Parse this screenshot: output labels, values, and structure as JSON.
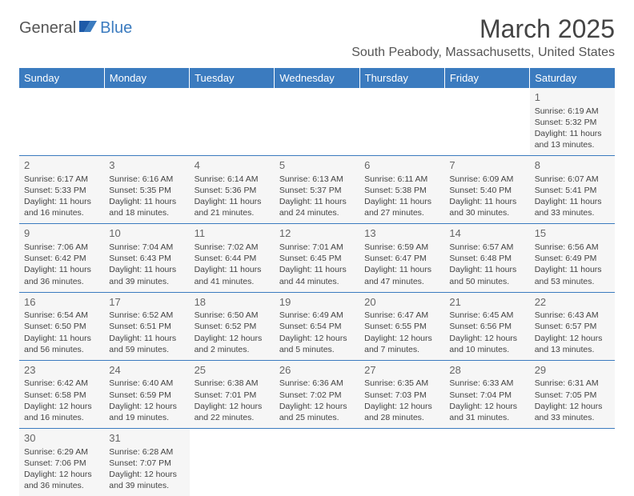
{
  "logo": {
    "part1": "General",
    "part2": "Blue"
  },
  "title": "March 2025",
  "location": "South Peabody, Massachusetts, United States",
  "colors": {
    "header_bg": "#3b7bbf",
    "header_text": "#ffffff",
    "cell_bg": "#f6f6f6",
    "border": "#3b7bbf",
    "text": "#444444",
    "logo_accent": "#3b7bbf"
  },
  "weekdays": [
    "Sunday",
    "Monday",
    "Tuesday",
    "Wednesday",
    "Thursday",
    "Friday",
    "Saturday"
  ],
  "weeks": [
    [
      null,
      null,
      null,
      null,
      null,
      null,
      {
        "day": "1",
        "sunrise": "Sunrise: 6:19 AM",
        "sunset": "Sunset: 5:32 PM",
        "daylight": "Daylight: 11 hours and 13 minutes."
      }
    ],
    [
      {
        "day": "2",
        "sunrise": "Sunrise: 6:17 AM",
        "sunset": "Sunset: 5:33 PM",
        "daylight": "Daylight: 11 hours and 16 minutes."
      },
      {
        "day": "3",
        "sunrise": "Sunrise: 6:16 AM",
        "sunset": "Sunset: 5:35 PM",
        "daylight": "Daylight: 11 hours and 18 minutes."
      },
      {
        "day": "4",
        "sunrise": "Sunrise: 6:14 AM",
        "sunset": "Sunset: 5:36 PM",
        "daylight": "Daylight: 11 hours and 21 minutes."
      },
      {
        "day": "5",
        "sunrise": "Sunrise: 6:13 AM",
        "sunset": "Sunset: 5:37 PM",
        "daylight": "Daylight: 11 hours and 24 minutes."
      },
      {
        "day": "6",
        "sunrise": "Sunrise: 6:11 AM",
        "sunset": "Sunset: 5:38 PM",
        "daylight": "Daylight: 11 hours and 27 minutes."
      },
      {
        "day": "7",
        "sunrise": "Sunrise: 6:09 AM",
        "sunset": "Sunset: 5:40 PM",
        "daylight": "Daylight: 11 hours and 30 minutes."
      },
      {
        "day": "8",
        "sunrise": "Sunrise: 6:07 AM",
        "sunset": "Sunset: 5:41 PM",
        "daylight": "Daylight: 11 hours and 33 minutes."
      }
    ],
    [
      {
        "day": "9",
        "sunrise": "Sunrise: 7:06 AM",
        "sunset": "Sunset: 6:42 PM",
        "daylight": "Daylight: 11 hours and 36 minutes."
      },
      {
        "day": "10",
        "sunrise": "Sunrise: 7:04 AM",
        "sunset": "Sunset: 6:43 PM",
        "daylight": "Daylight: 11 hours and 39 minutes."
      },
      {
        "day": "11",
        "sunrise": "Sunrise: 7:02 AM",
        "sunset": "Sunset: 6:44 PM",
        "daylight": "Daylight: 11 hours and 41 minutes."
      },
      {
        "day": "12",
        "sunrise": "Sunrise: 7:01 AM",
        "sunset": "Sunset: 6:45 PM",
        "daylight": "Daylight: 11 hours and 44 minutes."
      },
      {
        "day": "13",
        "sunrise": "Sunrise: 6:59 AM",
        "sunset": "Sunset: 6:47 PM",
        "daylight": "Daylight: 11 hours and 47 minutes."
      },
      {
        "day": "14",
        "sunrise": "Sunrise: 6:57 AM",
        "sunset": "Sunset: 6:48 PM",
        "daylight": "Daylight: 11 hours and 50 minutes."
      },
      {
        "day": "15",
        "sunrise": "Sunrise: 6:56 AM",
        "sunset": "Sunset: 6:49 PM",
        "daylight": "Daylight: 11 hours and 53 minutes."
      }
    ],
    [
      {
        "day": "16",
        "sunrise": "Sunrise: 6:54 AM",
        "sunset": "Sunset: 6:50 PM",
        "daylight": "Daylight: 11 hours and 56 minutes."
      },
      {
        "day": "17",
        "sunrise": "Sunrise: 6:52 AM",
        "sunset": "Sunset: 6:51 PM",
        "daylight": "Daylight: 11 hours and 59 minutes."
      },
      {
        "day": "18",
        "sunrise": "Sunrise: 6:50 AM",
        "sunset": "Sunset: 6:52 PM",
        "daylight": "Daylight: 12 hours and 2 minutes."
      },
      {
        "day": "19",
        "sunrise": "Sunrise: 6:49 AM",
        "sunset": "Sunset: 6:54 PM",
        "daylight": "Daylight: 12 hours and 5 minutes."
      },
      {
        "day": "20",
        "sunrise": "Sunrise: 6:47 AM",
        "sunset": "Sunset: 6:55 PM",
        "daylight": "Daylight: 12 hours and 7 minutes."
      },
      {
        "day": "21",
        "sunrise": "Sunrise: 6:45 AM",
        "sunset": "Sunset: 6:56 PM",
        "daylight": "Daylight: 12 hours and 10 minutes."
      },
      {
        "day": "22",
        "sunrise": "Sunrise: 6:43 AM",
        "sunset": "Sunset: 6:57 PM",
        "daylight": "Daylight: 12 hours and 13 minutes."
      }
    ],
    [
      {
        "day": "23",
        "sunrise": "Sunrise: 6:42 AM",
        "sunset": "Sunset: 6:58 PM",
        "daylight": "Daylight: 12 hours and 16 minutes."
      },
      {
        "day": "24",
        "sunrise": "Sunrise: 6:40 AM",
        "sunset": "Sunset: 6:59 PM",
        "daylight": "Daylight: 12 hours and 19 minutes."
      },
      {
        "day": "25",
        "sunrise": "Sunrise: 6:38 AM",
        "sunset": "Sunset: 7:01 PM",
        "daylight": "Daylight: 12 hours and 22 minutes."
      },
      {
        "day": "26",
        "sunrise": "Sunrise: 6:36 AM",
        "sunset": "Sunset: 7:02 PM",
        "daylight": "Daylight: 12 hours and 25 minutes."
      },
      {
        "day": "27",
        "sunrise": "Sunrise: 6:35 AM",
        "sunset": "Sunset: 7:03 PM",
        "daylight": "Daylight: 12 hours and 28 minutes."
      },
      {
        "day": "28",
        "sunrise": "Sunrise: 6:33 AM",
        "sunset": "Sunset: 7:04 PM",
        "daylight": "Daylight: 12 hours and 31 minutes."
      },
      {
        "day": "29",
        "sunrise": "Sunrise: 6:31 AM",
        "sunset": "Sunset: 7:05 PM",
        "daylight": "Daylight: 12 hours and 33 minutes."
      }
    ],
    [
      {
        "day": "30",
        "sunrise": "Sunrise: 6:29 AM",
        "sunset": "Sunset: 7:06 PM",
        "daylight": "Daylight: 12 hours and 36 minutes."
      },
      {
        "day": "31",
        "sunrise": "Sunrise: 6:28 AM",
        "sunset": "Sunset: 7:07 PM",
        "daylight": "Daylight: 12 hours and 39 minutes."
      },
      null,
      null,
      null,
      null,
      null
    ]
  ]
}
